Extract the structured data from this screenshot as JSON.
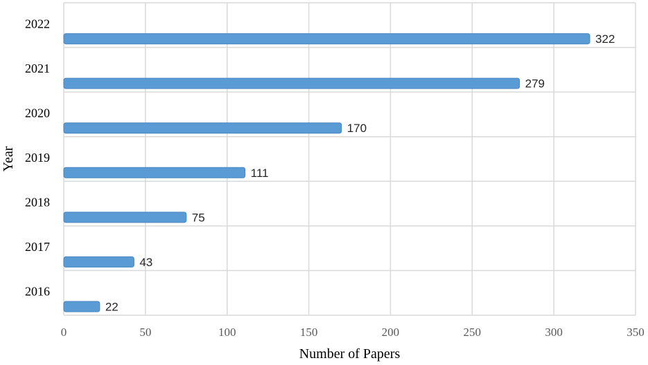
{
  "chart_data": {
    "type": "bar",
    "orientation": "horizontal",
    "categories": [
      "2016",
      "2017",
      "2018",
      "2019",
      "2020",
      "2021",
      "2022"
    ],
    "values": [
      22,
      43,
      75,
      111,
      170,
      279,
      322
    ],
    "data_labels": [
      "22",
      "43",
      "75",
      "111",
      "170",
      "279",
      "322"
    ],
    "xlabel": "Number of Papers",
    "ylabel": "Year",
    "xlim": [
      0,
      350
    ],
    "xticks": [
      0,
      50,
      100,
      150,
      200,
      250,
      300,
      350
    ],
    "xtick_labels": [
      "0",
      "50",
      "100",
      "150",
      "200",
      "250",
      "300",
      "350"
    ],
    "grid": true,
    "legend": "none",
    "bar_color": "#5B9BD5",
    "bar_edge_color": "#4A86C0",
    "grid_color": "#D9D9D9"
  }
}
